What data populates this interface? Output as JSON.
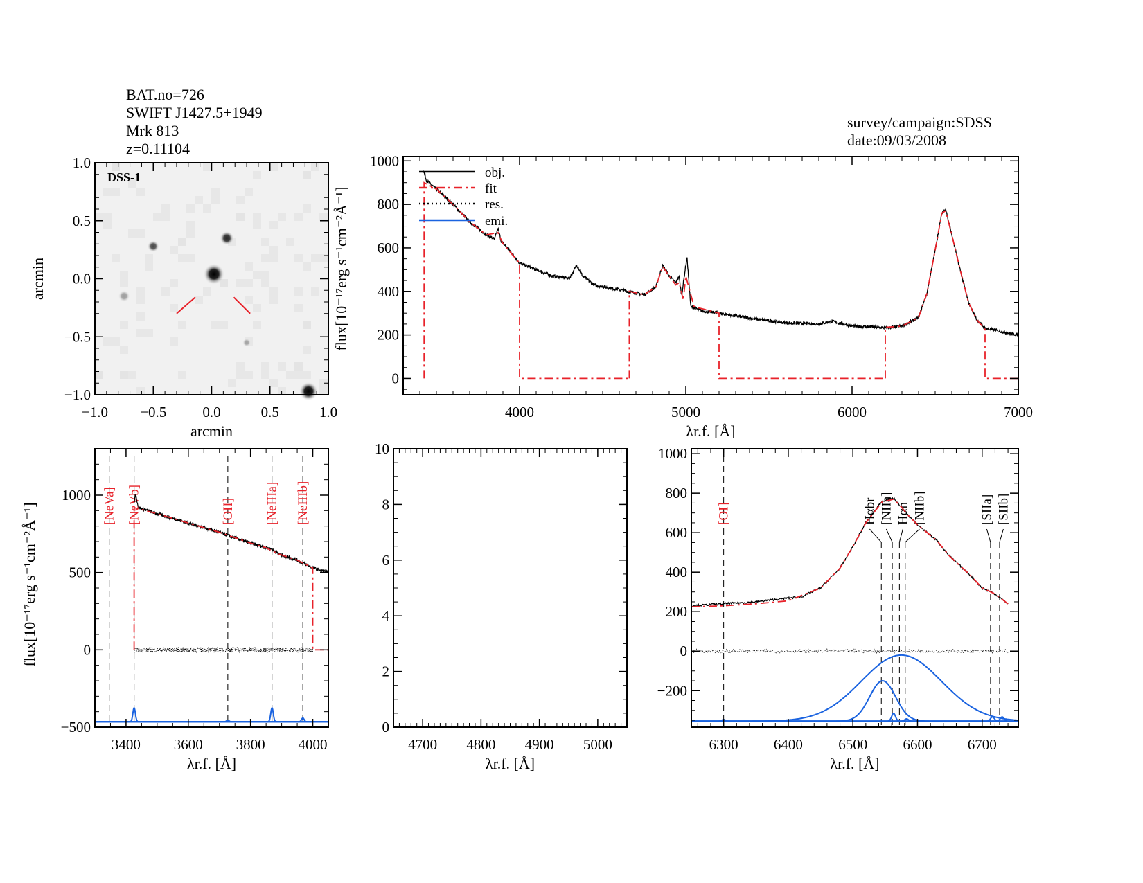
{
  "header": {
    "lines": [
      "BAT.no=726",
      "SWIFT J1427.5+1949",
      "Mrk 813",
      "z=0.11104"
    ],
    "survey": "survey/campaign:SDSS",
    "date": "date:09/03/2008"
  },
  "colors": {
    "object": "#000000",
    "fit": "#e8222a",
    "residual": "#000000",
    "emission": "#1a63e0",
    "marker": "#e8222a",
    "image_background": "#f1f1f1"
  },
  "chart_data": [
    {
      "type": "image",
      "title": "DSS-1",
      "xlabel": "arcmin",
      "ylabel": "arcmin",
      "xlim": [
        -1,
        1
      ],
      "ylim": [
        -1,
        1
      ],
      "xticks": [
        "−1.0",
        "−0.5",
        "0.0",
        "0.5",
        "1.0"
      ],
      "xtick_values": [
        -1,
        -0.5,
        0,
        0.5,
        1
      ],
      "yticks": [
        "−1.0",
        "−0.5",
        "0.0",
        "0.5",
        "1.0"
      ],
      "ytick_values": [
        -1,
        -0.5,
        0,
        0.5,
        1
      ],
      "sources": [
        {
          "x": 0.02,
          "y": 0.04,
          "brightness": 1.0,
          "size": 0.09
        },
        {
          "x": 0.13,
          "y": 0.35,
          "brightness": 0.85,
          "size": 0.06
        },
        {
          "x": -0.5,
          "y": 0.28,
          "brightness": 0.7,
          "size": 0.05
        },
        {
          "x": -0.75,
          "y": -0.15,
          "brightness": 0.35,
          "size": 0.05
        },
        {
          "x": 0.3,
          "y": -0.55,
          "brightness": 0.3,
          "size": 0.035
        },
        {
          "x": 0.83,
          "y": -0.97,
          "brightness": 1.0,
          "size": 0.08
        }
      ]
    },
    {
      "type": "line",
      "xlabel": "λr.f. [Å]",
      "ylabel": "flux[10⁻¹⁷erg s⁻¹cm⁻²Å⁻¹]",
      "xlim": [
        3300,
        7000
      ],
      "ylim": [
        -75,
        1020
      ],
      "xticks": [
        "4000",
        "5000",
        "6000",
        "7000"
      ],
      "xtick_values": [
        4000,
        5000,
        6000,
        7000
      ],
      "yticks": [
        "0",
        "200",
        "400",
        "600",
        "800",
        "1000"
      ],
      "ytick_values": [
        0,
        200,
        400,
        600,
        800,
        1000
      ],
      "legend": {
        "placement": "top-left",
        "entries": [
          "obj.",
          "fit",
          "res.",
          "emi."
        ]
      },
      "series": [
        {
          "name": "obj.",
          "x": [
            3420,
            3440,
            3500,
            3600,
            3700,
            3800,
            3850,
            3870,
            3890,
            3950,
            4000,
            4100,
            4200,
            4300,
            4330,
            4345,
            4380,
            4450,
            4550,
            4650,
            4750,
            4820,
            4861,
            4900,
            4940,
            4959,
            4975,
            5007,
            5030,
            5100,
            5200,
            5400,
            5600,
            5800,
            5880,
            5950,
            6000,
            6100,
            6200,
            6300,
            6400,
            6450,
            6500,
            6540,
            6563,
            6600,
            6650,
            6700,
            6750,
            6800,
            6900,
            7000
          ],
          "y": [
            960,
            910,
            870,
            800,
            720,
            660,
            640,
            690,
            630,
            580,
            530,
            500,
            470,
            460,
            500,
            520,
            470,
            430,
            415,
            400,
            385,
            420,
            520,
            470,
            440,
            470,
            380,
            560,
            330,
            310,
            300,
            275,
            255,
            250,
            262,
            250,
            240,
            238,
            232,
            240,
            280,
            390,
            590,
            760,
            780,
            660,
            500,
            350,
            270,
            230,
            215,
            200
          ]
        },
        {
          "name": "fit",
          "segments": [
            {
              "x": [
                3426,
                3426,
                3500,
                3600,
                3700,
                3800,
                3870,
                3900,
                4000,
                4000,
                4660
              ],
              "y": [
                0,
                900,
                870,
                800,
                720,
                660,
                670,
                620,
                530,
                0,
                0
              ]
            },
            {
              "x": [
                4660,
                4660,
                4750,
                4820,
                4861,
                4900,
                4940,
                4960,
                4985,
                5000,
                5050,
                5200,
                5200,
                6200
              ],
              "y": [
                0,
                400,
                385,
                420,
                515,
                470,
                430,
                440,
                360,
                470,
                330,
                300,
                0,
                0
              ]
            },
            {
              "x": [
                6200,
                6200,
                6300,
                6400,
                6450,
                6500,
                6540,
                6563,
                6600,
                6650,
                6700,
                6750,
                6800,
                6800,
                7000
              ],
              "y": [
                0,
                235,
                240,
                280,
                390,
                590,
                760,
                770,
                660,
                500,
                350,
                270,
                225,
                0,
                0
              ]
            }
          ]
        }
      ]
    },
    {
      "type": "line",
      "xlabel": "λr.f. [Å]",
      "ylabel": "flux[10⁻¹⁷erg s⁻¹cm⁻²Å⁻¹]",
      "xlim": [
        3300,
        4050
      ],
      "ylim": [
        -500,
        1300
      ],
      "xticks": [
        "3400",
        "3600",
        "3800",
        "4000"
      ],
      "xtick_values": [
        3400,
        3600,
        3800,
        4000
      ],
      "yticks": [
        "−500",
        "0",
        "500",
        "1000"
      ],
      "ytick_values": [
        -500,
        0,
        500,
        1000
      ],
      "lines": [
        {
          "label": "[NeVa]",
          "x": 3346,
          "color": "red"
        },
        {
          "label": "[NeVb]",
          "x": 3426,
          "color": "red"
        },
        {
          "label": "[OII]",
          "x": 3727,
          "color": "red"
        },
        {
          "label": "[NeIIIa]",
          "x": 3869,
          "color": "red"
        },
        {
          "label": "[NeIIIb]",
          "x": 3968,
          "color": "red"
        }
      ],
      "series": [
        {
          "name": "obj.",
          "x": [
            3426,
            3430,
            3440,
            3500,
            3600,
            3700,
            3727,
            3800,
            3850,
            3869,
            3890,
            3950,
            4000,
            4050
          ],
          "y": [
            950,
            1010,
            920,
            880,
            820,
            760,
            740,
            690,
            660,
            650,
            620,
            580,
            530,
            500
          ]
        },
        {
          "name": "fit",
          "x": [
            3426,
            3426,
            3500,
            3600,
            3700,
            3800,
            3850,
            3869,
            3890,
            3950,
            4000,
            4000,
            4050
          ],
          "y": [
            0,
            920,
            880,
            820,
            760,
            690,
            660,
            640,
            620,
            580,
            530,
            0,
            0
          ]
        },
        {
          "name": "res.",
          "x": [
            3426,
            4000
          ],
          "y": [
            0,
            0
          ]
        },
        {
          "name": "emi.",
          "baseline": -465,
          "gaussians": [
            {
              "center": 3426,
              "amp": 90,
              "sigma": 4
            },
            {
              "center": 3727,
              "amp": 10,
              "sigma": 4
            },
            {
              "center": 3869,
              "amp": 90,
              "sigma": 4
            },
            {
              "center": 3968,
              "amp": 25,
              "sigma": 4
            }
          ]
        }
      ]
    },
    {
      "type": "line",
      "xlabel": "λr.f. [Å]",
      "ylabel": "",
      "xlim": [
        4650,
        5050
      ],
      "ylim": [
        0,
        10
      ],
      "xticks": [
        "4700",
        "4800",
        "4900",
        "5000"
      ],
      "xtick_values": [
        4700,
        4800,
        4900,
        5000
      ],
      "yticks": [
        "0",
        "2",
        "4",
        "6",
        "8",
        "10"
      ],
      "ytick_values": [
        0,
        2,
        4,
        6,
        8,
        10
      ],
      "series": []
    },
    {
      "type": "line",
      "xlabel": "λr.f. [Å]",
      "ylabel": "",
      "xlim": [
        6250,
        6756
      ],
      "ylim": [
        -385,
        1025
      ],
      "xticks": [
        "6300",
        "6400",
        "6500",
        "6600",
        "6700"
      ],
      "xtick_values": [
        6300,
        6400,
        6500,
        6600,
        6700
      ],
      "yticks": [
        "−200",
        "0",
        "200",
        "400",
        "600",
        "800",
        "1000"
      ],
      "ytick_values": [
        -200,
        0,
        200,
        400,
        600,
        800,
        1000
      ],
      "lines": [
        {
          "label": "[OI]",
          "x": 6300,
          "color": "red"
        },
        {
          "label": "Hαbr",
          "x": 6544,
          "color": "black"
        },
        {
          "label": "[NIIa]",
          "x": 6561,
          "color": "black"
        },
        {
          "label": "Hαn",
          "x": 6572,
          "color": "black"
        },
        {
          "label": "[NIIb]",
          "x": 6581,
          "color": "black"
        },
        {
          "label": "[SIIa]",
          "x": 6713,
          "color": "black"
        },
        {
          "label": "[SIIb]",
          "x": 6727,
          "color": "black"
        }
      ],
      "series": [
        {
          "name": "obj.",
          "x": [
            6250,
            6300,
            6350,
            6380,
            6420,
            6450,
            6480,
            6500,
            6520,
            6545,
            6563,
            6575,
            6585,
            6600,
            6630,
            6650,
            6680,
            6700,
            6720,
            6740
          ],
          "y": [
            230,
            240,
            250,
            262,
            275,
            320,
            420,
            530,
            650,
            760,
            775,
            730,
            690,
            640,
            560,
            480,
            390,
            320,
            290,
            240
          ]
        },
        {
          "name": "fit",
          "x": [
            6250,
            6300,
            6350,
            6400,
            6450,
            6480,
            6500,
            6520,
            6545,
            6563,
            6575,
            6585,
            6600,
            6630,
            6650,
            6680,
            6700,
            6720,
            6740
          ],
          "y": [
            225,
            230,
            240,
            255,
            320,
            420,
            530,
            650,
            755,
            770,
            730,
            690,
            640,
            560,
            480,
            390,
            320,
            290,
            240
          ]
        },
        {
          "name": "res.",
          "x": [
            6250,
            6740
          ],
          "y": [
            0,
            0
          ]
        },
        {
          "name": "emi.",
          "baseline": -355,
          "gaussians": [
            {
              "center": 6575,
              "amp": 335,
              "sigma": 62
            },
            {
              "center": 6546,
              "amp": 205,
              "sigma": 20
            },
            {
              "center": 6563,
              "amp": 40,
              "sigma": 3
            },
            {
              "center": 6583,
              "amp": 12,
              "sigma": 3
            },
            {
              "center": 6300,
              "amp": 8,
              "sigma": 3
            },
            {
              "center": 6716,
              "amp": 22,
              "sigma": 3
            },
            {
              "center": 6731,
              "amp": 22,
              "sigma": 3
            }
          ]
        }
      ]
    }
  ]
}
